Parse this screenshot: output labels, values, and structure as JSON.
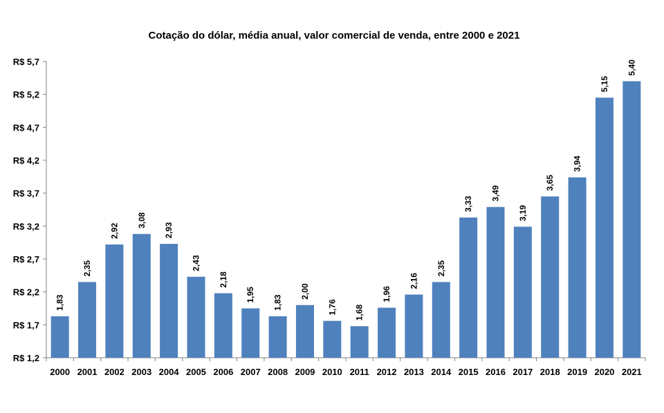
{
  "chart_data": {
    "type": "bar",
    "title": "Cotação do dólar, média anual, valor comercial de venda, entre 2000 e 2021",
    "xlabel": "",
    "ylabel": "",
    "categories": [
      "2000",
      "2001",
      "2002",
      "2003",
      "2004",
      "2005",
      "2006",
      "2007",
      "2008",
      "2009",
      "2010",
      "2011",
      "2012",
      "2013",
      "2014",
      "2015",
      "2016",
      "2017",
      "2018",
      "2019",
      "2020",
      "2021"
    ],
    "values": [
      1.83,
      2.35,
      2.92,
      3.08,
      2.93,
      2.43,
      2.18,
      1.95,
      1.83,
      2.0,
      1.76,
      1.68,
      1.96,
      2.16,
      2.35,
      3.33,
      3.49,
      3.19,
      3.65,
      3.94,
      5.15,
      5.4
    ],
    "data_labels": [
      "1,83",
      "2,35",
      "2,92",
      "3,08",
      "2,93",
      "2,43",
      "2,18",
      "1,95",
      "1,83",
      "2,00",
      "1,76",
      "1,68",
      "1,96",
      "2,16",
      "2,35",
      "3,33",
      "3,49",
      "3,19",
      "3,65",
      "3,94",
      "5,15",
      "5,40"
    ],
    "ylim": [
      1.2,
      5.7
    ],
    "yticks": [
      1.2,
      1.7,
      2.2,
      2.7,
      3.2,
      3.7,
      4.2,
      4.7,
      5.2,
      5.7
    ],
    "ytick_labels": [
      "R$ 1,2",
      "R$ 1,7",
      "R$ 2,2",
      "R$ 2,7",
      "R$ 3,2",
      "R$ 3,7",
      "R$ 4,2",
      "R$ 4,7",
      "R$ 5,2",
      "R$ 5,7"
    ],
    "grid": false,
    "legend": "none",
    "bar_color": "#4f81bd"
  }
}
